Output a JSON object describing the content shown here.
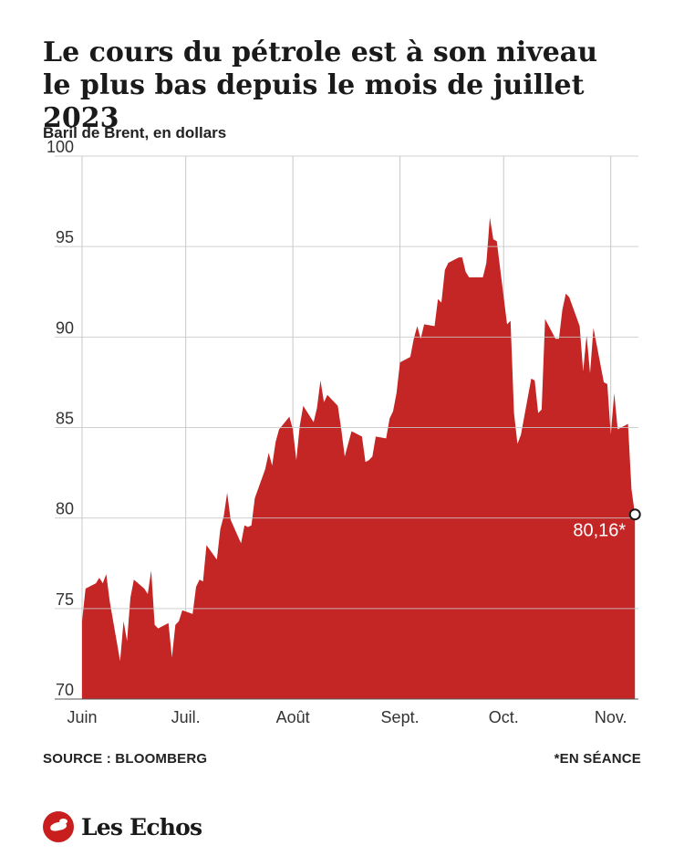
{
  "title_line1": "Le cours du pétrole est à son niveau",
  "title_line2": "le plus bas depuis le mois de juillet 2023",
  "subtitle": "Baril de Brent, en dollars",
  "source": "SOURCE : BLOOMBERG",
  "note": "*EN SÉANCE",
  "logo_text": "Les Echos",
  "last_value_label": "80,16*",
  "colors": {
    "area": "#c42525",
    "grid": "#c8c8c8",
    "text": "#1a1a1a"
  },
  "chart_data": {
    "type": "area",
    "ylim": [
      70,
      100
    ],
    "y_ticks": [
      100,
      95,
      90,
      85,
      80,
      75,
      70
    ],
    "x_tick_labels": [
      "Juin",
      "Juil.",
      "Août",
      "Sept.",
      "Oct.",
      "Nov."
    ],
    "x_tick_dates": [
      "2023-06-01",
      "2023-07-01",
      "2023-08-01",
      "2023-09-01",
      "2023-10-01",
      "2023-11-01"
    ],
    "x_range": [
      "2023-06-01",
      "2023-11-09"
    ],
    "grid": true,
    "series": [
      {
        "dates": [
          "2023-06-01",
          "2023-06-02",
          "2023-06-05",
          "2023-06-06",
          "2023-06-07",
          "2023-06-08",
          "2023-06-09",
          "2023-06-12",
          "2023-06-13",
          "2023-06-14",
          "2023-06-15",
          "2023-06-16",
          "2023-06-19",
          "2023-06-20",
          "2023-06-21",
          "2023-06-22",
          "2023-06-23",
          "2023-06-26",
          "2023-06-27",
          "2023-06-28",
          "2023-06-29",
          "2023-06-30",
          "2023-07-03",
          "2023-07-04",
          "2023-07-05",
          "2023-07-06",
          "2023-07-07",
          "2023-07-10",
          "2023-07-11",
          "2023-07-12",
          "2023-07-13",
          "2023-07-14",
          "2023-07-17",
          "2023-07-18",
          "2023-07-19",
          "2023-07-20",
          "2023-07-21",
          "2023-07-24",
          "2023-07-25",
          "2023-07-26",
          "2023-07-27",
          "2023-07-28",
          "2023-07-31",
          "2023-08-01",
          "2023-08-02",
          "2023-08-03",
          "2023-08-04",
          "2023-08-07",
          "2023-08-08",
          "2023-08-09",
          "2023-08-10",
          "2023-08-11",
          "2023-08-14",
          "2023-08-15",
          "2023-08-16",
          "2023-08-17",
          "2023-08-18",
          "2023-08-21",
          "2023-08-22",
          "2023-08-23",
          "2023-08-24",
          "2023-08-25",
          "2023-08-28",
          "2023-08-29",
          "2023-08-30",
          "2023-08-31",
          "2023-09-01",
          "2023-09-04",
          "2023-09-05",
          "2023-09-06",
          "2023-09-07",
          "2023-09-08",
          "2023-09-11",
          "2023-09-12",
          "2023-09-13",
          "2023-09-14",
          "2023-09-15",
          "2023-09-18",
          "2023-09-19",
          "2023-09-20",
          "2023-09-21",
          "2023-09-22",
          "2023-09-25",
          "2023-09-26",
          "2023-09-27",
          "2023-09-28",
          "2023-09-29",
          "2023-10-02",
          "2023-10-03",
          "2023-10-04",
          "2023-10-05",
          "2023-10-06",
          "2023-10-09",
          "2023-10-10",
          "2023-10-11",
          "2023-10-12",
          "2023-10-13",
          "2023-10-16",
          "2023-10-17",
          "2023-10-18",
          "2023-10-19",
          "2023-10-20",
          "2023-10-23",
          "2023-10-24",
          "2023-10-25",
          "2023-10-26",
          "2023-10-27",
          "2023-10-30",
          "2023-10-31",
          "2023-11-01",
          "2023-11-02",
          "2023-11-03",
          "2023-11-06",
          "2023-11-07",
          "2023-11-08"
        ],
        "values": [
          74.3,
          76.1,
          76.4,
          76.7,
          76.4,
          76.9,
          75.4,
          72.1,
          74.3,
          73.2,
          75.6,
          76.6,
          76.1,
          75.8,
          77.1,
          74.1,
          73.9,
          74.2,
          72.3,
          74.1,
          74.3,
          74.9,
          74.7,
          76.2,
          76.6,
          76.5,
          78.5,
          77.7,
          79.4,
          80.1,
          81.4,
          79.9,
          78.6,
          79.6,
          79.5,
          79.6,
          81.1,
          82.7,
          83.6,
          82.9,
          84.2,
          84.9,
          85.6,
          84.9,
          83.2,
          85.1,
          86.2,
          85.3,
          86.1,
          87.6,
          86.4,
          86.8,
          86.2,
          84.9,
          83.4,
          84.1,
          84.8,
          84.5,
          83.1,
          83.2,
          83.4,
          84.5,
          84.4,
          85.5,
          85.9,
          86.9,
          88.6,
          88.9,
          89.9,
          90.6,
          89.9,
          90.7,
          90.6,
          92.1,
          91.9,
          93.7,
          94.1,
          94.4,
          94.4,
          93.6,
          93.3,
          93.3,
          93.3,
          94.1,
          96.6,
          95.4,
          95.3,
          90.7,
          90.9,
          85.8,
          84.1,
          84.6,
          87.7,
          87.6,
          85.8,
          86.0,
          91.0,
          89.9,
          89.9,
          91.5,
          92.4,
          92.2,
          90.6,
          88.1,
          90.1,
          88.0,
          90.5,
          87.5,
          87.4,
          84.6,
          86.9,
          84.9,
          85.2,
          81.6,
          80.2
        ]
      }
    ]
  }
}
